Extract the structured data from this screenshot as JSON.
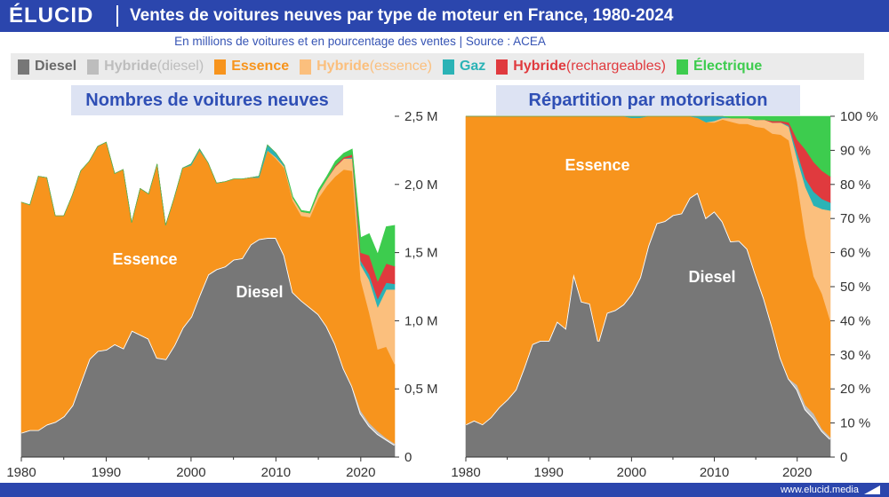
{
  "header": {
    "logo": "ÉLUCID",
    "title": "Ventes de voitures neuves par type de moteur en France, 1980-2024",
    "subtitle": "En millions de voitures et en pourcentage des ventes  |  Source : ACEA"
  },
  "legend": [
    {
      "main": "Diesel",
      "paren": "",
      "color": "#777777"
    },
    {
      "main": "Hybride",
      "paren": " (diesel)",
      "color": "#bdbdbd"
    },
    {
      "main": "Essence",
      "paren": "",
      "color": "#f7941d"
    },
    {
      "main": "Hybride",
      "paren": " (essence)",
      "color": "#fbbf7d"
    },
    {
      "main": "Gaz",
      "paren": "",
      "color": "#2bb3b6"
    },
    {
      "main": "Hybride",
      "paren": " (rechargeables)",
      "color": "#e03a3e"
    },
    {
      "main": "Électrique",
      "paren": "",
      "color": "#3dcc4e"
    }
  ],
  "panels": {
    "left_title": "Nombres de voitures neuves",
    "right_title": "Répartition par motorisation",
    "left_area_labels": [
      "Essence",
      "Diesel"
    ],
    "right_area_labels": [
      "Essence",
      "Diesel"
    ]
  },
  "footer": {
    "url": "www.elucid.media"
  },
  "chart_data": [
    {
      "type": "area",
      "stacked": true,
      "title": "Nombres de voitures neuves",
      "x": [
        1980,
        1981,
        1982,
        1983,
        1984,
        1985,
        1986,
        1987,
        1988,
        1989,
        1990,
        1991,
        1992,
        1993,
        1994,
        1995,
        1996,
        1997,
        1998,
        1999,
        2000,
        2001,
        2002,
        2003,
        2004,
        2005,
        2006,
        2007,
        2008,
        2009,
        2010,
        2011,
        2012,
        2013,
        2014,
        2015,
        2016,
        2017,
        2018,
        2019,
        2020,
        2021,
        2022,
        2023,
        2024
      ],
      "xticks": [
        1980,
        1990,
        2000,
        2010,
        2020
      ],
      "ylim": [
        0,
        2.5
      ],
      "yticks": [
        0,
        0.5,
        1.0,
        1.5,
        2.0,
        2.5
      ],
      "ytick_labels": [
        "0",
        "0,5 M",
        "1,0 M",
        "1,5 M",
        "2,0 M",
        "2,5 M"
      ],
      "series": [
        {
          "name": "Diesel",
          "color": "#777777",
          "values": [
            0.18,
            0.2,
            0.2,
            0.24,
            0.26,
            0.3,
            0.38,
            0.55,
            0.72,
            0.78,
            0.79,
            0.83,
            0.8,
            0.93,
            0.9,
            0.87,
            0.73,
            0.72,
            0.82,
            0.95,
            1.03,
            1.19,
            1.34,
            1.38,
            1.4,
            1.45,
            1.46,
            1.56,
            1.6,
            1.61,
            1.61,
            1.48,
            1.21,
            1.15,
            1.1,
            1.05,
            0.96,
            0.83,
            0.65,
            0.52,
            0.32,
            0.23,
            0.17,
            0.13,
            0.09
          ]
        },
        {
          "name": "Hybride (diesel)",
          "color": "#bdbdbd",
          "values": [
            0,
            0,
            0,
            0,
            0,
            0,
            0,
            0,
            0,
            0,
            0,
            0,
            0,
            0,
            0,
            0,
            0,
            0,
            0,
            0,
            0,
            0,
            0,
            0,
            0,
            0,
            0,
            0,
            0,
            0,
            0,
            0,
            0,
            0,
            0,
            0,
            0,
            0,
            0,
            0,
            0.02,
            0.02,
            0.02,
            0.01,
            0.01
          ]
        },
        {
          "name": "Essence",
          "color": "#f7941d",
          "values": [
            1.69,
            1.65,
            1.86,
            1.81,
            1.51,
            1.47,
            1.54,
            1.55,
            1.45,
            1.5,
            1.52,
            1.25,
            1.31,
            0.79,
            1.07,
            1.06,
            1.42,
            0.98,
            1.08,
            1.17,
            1.11,
            1.06,
            0.82,
            0.63,
            0.62,
            0.59,
            0.58,
            0.49,
            0.45,
            0.64,
            0.58,
            0.64,
            0.67,
            0.62,
            0.66,
            0.85,
            1.03,
            1.23,
            1.46,
            1.58,
            0.96,
            0.81,
            0.6,
            0.67,
            0.58
          ]
        },
        {
          "name": "Hybride (essence)",
          "color": "#fbbf7d",
          "values": [
            0,
            0,
            0,
            0,
            0,
            0,
            0,
            0,
            0,
            0,
            0,
            0,
            0,
            0,
            0,
            0,
            0,
            0,
            0,
            0,
            0,
            0,
            0,
            0,
            0,
            0,
            0,
            0,
            0,
            0,
            0.01,
            0.01,
            0.02,
            0.03,
            0.03,
            0.04,
            0.05,
            0.07,
            0.08,
            0.09,
            0.11,
            0.24,
            0.31,
            0.42,
            0.55
          ]
        },
        {
          "name": "Gaz",
          "color": "#2bb3b6",
          "values": [
            0,
            0,
            0,
            0,
            0,
            0,
            0,
            0,
            0,
            0,
            0,
            0,
            0,
            0,
            0,
            0,
            0,
            0,
            0,
            0,
            0.01,
            0.01,
            0,
            0,
            0,
            0,
            0,
            0,
            0.01,
            0.04,
            0.03,
            0.01,
            0,
            0,
            0,
            0,
            0,
            0,
            0,
            0.01,
            0.03,
            0.04,
            0.06,
            0.05,
            0.04
          ]
        },
        {
          "name": "Hybride (rechargeables)",
          "color": "#e03a3e",
          "values": [
            0,
            0,
            0,
            0,
            0,
            0,
            0,
            0,
            0,
            0,
            0,
            0,
            0,
            0,
            0,
            0,
            0,
            0,
            0,
            0,
            0,
            0,
            0,
            0,
            0,
            0,
            0,
            0,
            0,
            0,
            0,
            0,
            0,
            0,
            0,
            0,
            0,
            0.01,
            0.01,
            0.02,
            0.06,
            0.14,
            0.13,
            0.14,
            0.13
          ]
        },
        {
          "name": "Électrique",
          "color": "#3dcc4e",
          "values": [
            0,
            0,
            0,
            0,
            0,
            0,
            0,
            0,
            0,
            0,
            0,
            0,
            0,
            0,
            0,
            0,
            0,
            0,
            0,
            0,
            0,
            0,
            0,
            0,
            0,
            0,
            0,
            0,
            0,
            0,
            0,
            0,
            0.01,
            0.01,
            0.01,
            0.02,
            0.02,
            0.03,
            0.03,
            0.04,
            0.11,
            0.16,
            0.2,
            0.27,
            0.3
          ]
        }
      ]
    },
    {
      "type": "area",
      "stacked": true,
      "normalized": true,
      "title": "Répartition par motorisation",
      "x": [
        1980,
        1981,
        1982,
        1983,
        1984,
        1985,
        1986,
        1987,
        1988,
        1989,
        1990,
        1991,
        1992,
        1993,
        1994,
        1995,
        1996,
        1997,
        1998,
        1999,
        2000,
        2001,
        2002,
        2003,
        2004,
        2005,
        2006,
        2007,
        2008,
        2009,
        2010,
        2011,
        2012,
        2013,
        2014,
        2015,
        2016,
        2017,
        2018,
        2019,
        2020,
        2021,
        2022,
        2023,
        2024
      ],
      "xticks": [
        1980,
        1990,
        2000,
        2010,
        2020
      ],
      "ylim": [
        0,
        100
      ],
      "yticks": [
        0,
        10,
        20,
        30,
        40,
        50,
        60,
        70,
        80,
        90,
        100
      ],
      "ytick_labels": [
        "0",
        "10 %",
        "20 %",
        "30 %",
        "40 %",
        "50 %",
        "60 %",
        "70 %",
        "80 %",
        "90 %",
        "100 %"
      ],
      "series_ref": "same series as chart 1, expressed as % of yearly total"
    }
  ]
}
